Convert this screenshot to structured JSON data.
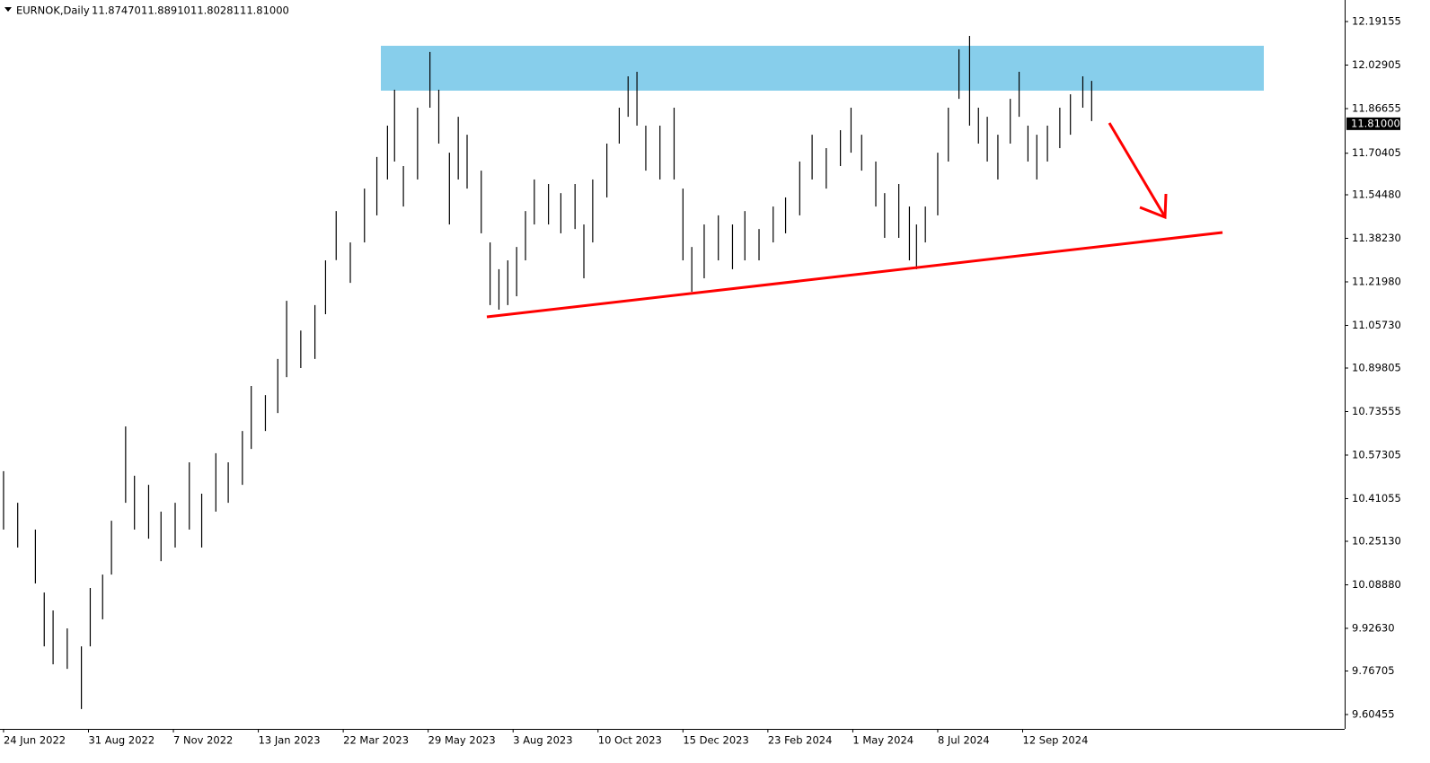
{
  "chart_data": {
    "type": "range-bar",
    "title": "EURNOK,Daily",
    "header_values": [
      {
        "value": 11.8747,
        "label": "11.87470"
      },
      {
        "value": 11.8891,
        "label": "11.88910"
      },
      11.80281,
      {
        "value": 11.81,
        "label": "11.81000"
      }
    ],
    "last_price": {
      "value": 11.81,
      "label": "11.81000"
    },
    "color": "#000000",
    "x": [
      0,
      8,
      18,
      23,
      28,
      36,
      44,
      49,
      56,
      61,
      69,
      74,
      82,
      89,
      97,
      105,
      112,
      120,
      127,
      135,
      140,
      148,
      155,
      160,
      168,
      176,
      182,
      188,
      196,
      204,
      211,
      217,
      221,
      226,
      234,
      241,
      246,
      252,
      257,
      262,
      270,
      275,
      280,
      285,
      290,
      295,
      300,
      308,
      315,
      323,
      328,
      333,
      341,
      348,
      353,
      358,
      363,
      371,
      379,
      384,
      389,
      396,
      404,
      412,
      419,
      427,
      435,
      442,
      450,
      457,
      465,
      473,
      479,
      485,
      493,
      498,
      506,
      512,
      516,
      521,
      528,
      534,
      540,
      546,
      551,
      556,
      562,
      569,
      574,
      579,
      584,
      590,
      597,
      603,
      610,
      615
    ],
    "high": [
      10.513,
      10.395,
      10.295,
      10.06,
      9.993,
      9.926,
      9.859,
      10.077,
      10.127,
      10.328,
      10.68,
      10.496,
      10.462,
      10.362,
      10.395,
      10.546,
      10.429,
      10.58,
      10.546,
      10.663,
      10.831,
      10.797,
      10.932,
      11.149,
      11.038,
      11.133,
      11.3,
      11.484,
      11.367,
      11.568,
      11.686,
      11.803,
      11.937,
      11.652,
      11.87,
      12.078,
      11.937,
      11.702,
      11.836,
      11.769,
      11.635,
      11.367,
      11.267,
      11.3,
      11.35,
      11.484,
      11.602,
      11.585,
      11.551,
      11.585,
      11.434,
      11.602,
      11.736,
      11.87,
      11.987,
      12.004,
      11.803,
      11.803,
      11.87,
      11.568,
      11.35,
      11.434,
      11.468,
      11.434,
      11.484,
      11.417,
      11.501,
      11.535,
      11.669,
      11.769,
      11.719,
      11.786,
      11.87,
      11.769,
      11.669,
      11.551,
      11.585,
      11.501,
      11.434,
      11.501,
      11.702,
      11.87,
      12.088,
      12.138,
      11.87,
      11.836,
      11.769,
      11.903,
      12.004,
      11.803,
      11.769,
      11.803,
      11.87,
      11.92,
      11.987,
      11.97
    ],
    "low": [
      10.295,
      10.228,
      10.094,
      9.859,
      9.792,
      9.775,
      9.625,
      9.859,
      9.96,
      10.127,
      10.395,
      10.295,
      10.261,
      10.177,
      10.228,
      10.295,
      10.228,
      10.362,
      10.395,
      10.462,
      10.596,
      10.663,
      10.73,
      10.864,
      10.898,
      10.932,
      11.099,
      11.301,
      11.216,
      11.367,
      11.468,
      11.602,
      11.669,
      11.501,
      11.602,
      11.87,
      11.736,
      11.434,
      11.602,
      11.568,
      11.401,
      11.133,
      11.116,
      11.133,
      11.166,
      11.3,
      11.434,
      11.434,
      11.401,
      11.417,
      11.233,
      11.367,
      11.535,
      11.736,
      11.836,
      11.803,
      11.635,
      11.602,
      11.602,
      11.3,
      11.183,
      11.233,
      11.3,
      11.267,
      11.3,
      11.3,
      11.367,
      11.401,
      11.468,
      11.602,
      11.568,
      11.652,
      11.702,
      11.635,
      11.501,
      11.384,
      11.384,
      11.3,
      11.267,
      11.367,
      11.468,
      11.669,
      11.903,
      11.803,
      11.736,
      11.669,
      11.602,
      11.736,
      11.836,
      11.669,
      11.602,
      11.669,
      11.719,
      11.769,
      11.87,
      11.82
    ],
    "xlim": [
      -2,
      758
    ],
    "xticks": [
      {
        "value": 0,
        "label": "24 Jun 2022"
      },
      {
        "value": 48,
        "label": "31 Aug 2022"
      },
      {
        "value": 96,
        "label": "7 Nov 2022"
      },
      {
        "value": 144,
        "label": "13 Jan 2023"
      },
      {
        "value": 192,
        "label": "22 Mar 2023"
      },
      {
        "value": 240,
        "label": "29 May 2023"
      },
      {
        "value": 288,
        "label": "3 Aug 2023"
      },
      {
        "value": 336,
        "label": "10 Oct 2023"
      },
      {
        "value": 384,
        "label": "15 Dec 2023"
      },
      {
        "value": 432,
        "label": "23 Feb 2024"
      },
      {
        "value": 480,
        "label": "1 May 2024"
      },
      {
        "value": 528,
        "label": "8 Jul 2024"
      },
      {
        "value": 576,
        "label": "12 Sep 2024"
      }
    ],
    "ylim": [
      9.5509,
      12.272
    ],
    "yticks": [
      12.19155,
      12.02905,
      11.86655,
      {
        "value": 11.7,
        "label": "11.70405"
      },
      {
        "value": 11.5448,
        "label": "11.54480"
      },
      {
        "value": 11.3823,
        "label": "11.38230"
      },
      {
        "value": 11.2198,
        "label": "11.21980"
      },
      {
        "value": 11.0573,
        "label": "11.05730"
      },
      10.89805,
      10.73555,
      10.57305,
      10.41055,
      {
        "value": 10.2513,
        "label": "10.25130"
      },
      {
        "value": 10.0888,
        "label": "10.08880"
      },
      {
        "value": 9.9263,
        "label": "9.92630"
      },
      9.76705,
      9.60455
    ]
  }
}
